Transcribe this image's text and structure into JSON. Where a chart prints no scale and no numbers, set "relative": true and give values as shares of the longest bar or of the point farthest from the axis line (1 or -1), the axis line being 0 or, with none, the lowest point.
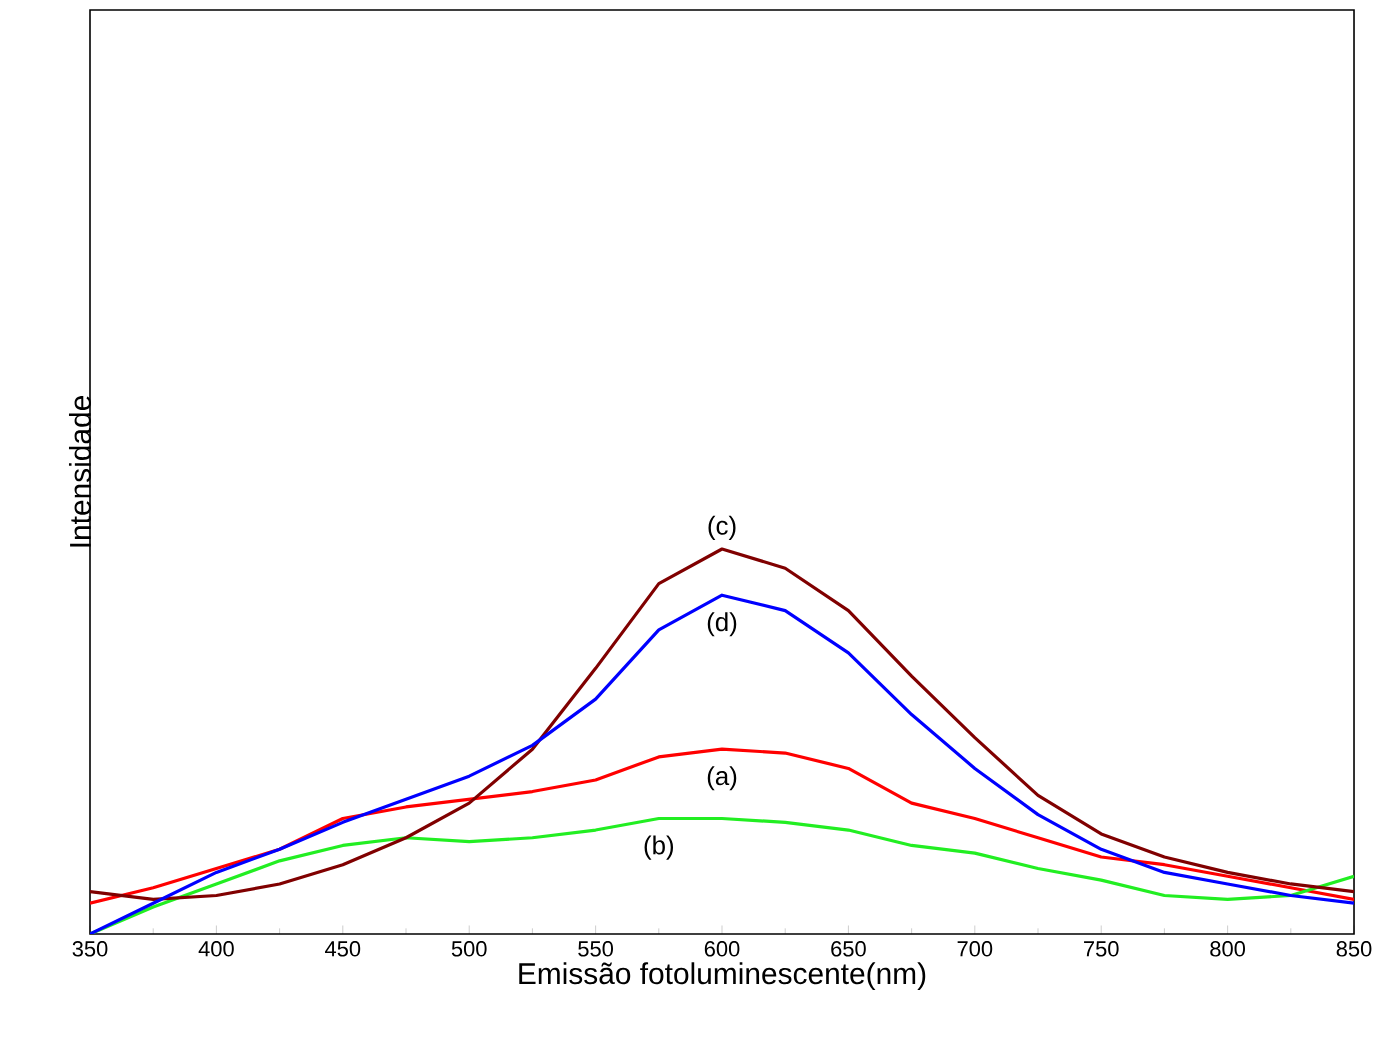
{
  "chart_data": {
    "type": "line",
    "xlabel": "Emissão fotoluminescente(nm)",
    "ylabel": "Intensidade",
    "relative": true,
    "grid": false,
    "legend": false,
    "marker": "none",
    "line_style": "solid",
    "x": [
      350,
      375,
      400,
      425,
      450,
      475,
      500,
      525,
      550,
      575,
      600,
      625,
      650,
      675,
      700,
      725,
      750,
      775,
      800,
      825,
      850
    ],
    "xlim": [
      350,
      850
    ],
    "xticks": [
      350,
      400,
      450,
      500,
      550,
      600,
      650,
      700,
      750,
      800,
      850
    ],
    "series": [
      {
        "name": "(a)",
        "color": "#ff0000",
        "values": [
          0.08,
          0.12,
          0.17,
          0.22,
          0.3,
          0.33,
          0.35,
          0.37,
          0.4,
          0.46,
          0.48,
          0.47,
          0.43,
          0.34,
          0.3,
          0.25,
          0.2,
          0.18,
          0.15,
          0.12,
          0.09
        ]
      },
      {
        "name": "(b)",
        "color": "#22ee22",
        "values": [
          0,
          0.07,
          0.13,
          0.19,
          0.23,
          0.25,
          0.24,
          0.25,
          0.27,
          0.3,
          0.3,
          0.29,
          0.27,
          0.23,
          0.21,
          0.17,
          0.14,
          0.1,
          0.09,
          0.1,
          0.15
        ]
      },
      {
        "name": "(c)",
        "color": "#800000",
        "values": [
          0.11,
          0.09,
          0.1,
          0.13,
          0.18,
          0.25,
          0.34,
          0.48,
          0.69,
          0.91,
          1.0,
          0.95,
          0.84,
          0.67,
          0.51,
          0.36,
          0.26,
          0.2,
          0.16,
          0.13,
          0.11
        ]
      },
      {
        "name": "(d)",
        "color": "#0000ff",
        "values": [
          0,
          0.08,
          0.16,
          0.22,
          0.29,
          0.35,
          0.41,
          0.49,
          0.61,
          0.79,
          0.88,
          0.84,
          0.73,
          0.57,
          0.43,
          0.31,
          0.22,
          0.16,
          0.13,
          0.1,
          0.08
        ]
      }
    ]
  }
}
